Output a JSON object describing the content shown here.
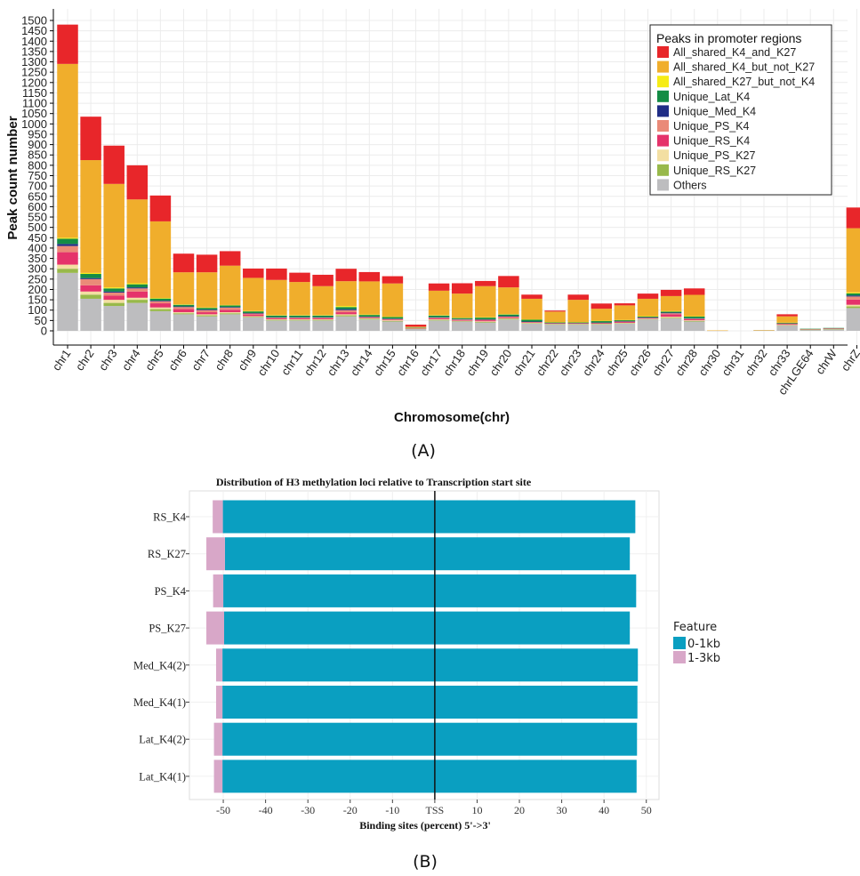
{
  "colors": {
    "All_shared_K4_and_K27": "#e8262a",
    "All_shared_K4_but_not_K27": "#f0ae2c",
    "All_shared_K27_but_not_K4": "#f6ec16",
    "Unique_Lat_K4": "#148c45",
    "Unique_Med_K4": "#1f2d86",
    "Unique_PS_K4": "#ea8a78",
    "Unique_RS_K4": "#e5336b",
    "Unique_PS_K27": "#f3dfa2",
    "Unique_RS_K27": "#98b94a",
    "Others": "#bdbdbf",
    "feature_0_1kb": "#0a9fc1",
    "feature_1_3kb": "#d8a7c8",
    "tss_line": "#111111"
  },
  "panel_labels": {
    "a": "(A)",
    "b": "(B)"
  },
  "chart_data": [
    {
      "type": "bar",
      "stacked": true,
      "panel": "A",
      "title": "",
      "xlabel": "Chromosome(chr)",
      "ylabel": "Peak count number",
      "ylim": [
        0,
        1500
      ],
      "yticks": [
        0,
        50,
        100,
        150,
        200,
        250,
        300,
        350,
        400,
        450,
        500,
        550,
        600,
        650,
        700,
        750,
        800,
        850,
        900,
        950,
        1000,
        1050,
        1100,
        1150,
        1200,
        1250,
        1300,
        1350,
        1400,
        1450,
        1500
      ],
      "ytick_labels": [
        "0",
        "50",
        "100",
        "150",
        "200",
        "250",
        "300",
        "350",
        "400",
        "450",
        "500",
        "550",
        "600",
        "650",
        "700",
        "750",
        "800",
        "850",
        "900",
        "950",
        "1000",
        "1050",
        "1100",
        "1150",
        "1200",
        "1250",
        "1300",
        "1350",
        "1400",
        "1450",
        "1500"
      ],
      "grid": true,
      "legend_title": "Peaks in promoter regions",
      "legend_position": "top-right",
      "categories": [
        "chr1",
        "chr2",
        "chr3",
        "chr4",
        "chr5",
        "chr6",
        "chr7",
        "chr8",
        "chr9",
        "chr10",
        "chr11",
        "chr12",
        "chr13",
        "chr14",
        "chr15",
        "chr16",
        "chr17",
        "chr18",
        "chr19",
        "chr20",
        "chr21",
        "chr22",
        "chr23",
        "chr24",
        "chr25",
        "chr26",
        "chr27",
        "chr28",
        "chr30",
        "chr31",
        "chr32",
        "chr33",
        "chrLGE64",
        "chrW",
        "chrZ"
      ],
      "series": [
        {
          "name": "Others",
          "values": [
            280,
            155,
            120,
            135,
            95,
            80,
            70,
            80,
            65,
            50,
            50,
            50,
            70,
            55,
            45,
            10,
            50,
            45,
            40,
            55,
            35,
            30,
            30,
            30,
            35,
            55,
            60,
            45,
            1,
            0,
            2,
            25,
            5,
            8,
            110
          ]
        },
        {
          "name": "Unique_RS_K27",
          "values": [
            20,
            20,
            15,
            15,
            10,
            5,
            5,
            5,
            3,
            3,
            3,
            3,
            5,
            3,
            3,
            1,
            3,
            2,
            3,
            3,
            2,
            2,
            2,
            2,
            2,
            2,
            3,
            3,
            0,
            0,
            0,
            2,
            1,
            1,
            8
          ]
        },
        {
          "name": "Unique_PS_K27",
          "values": [
            20,
            15,
            15,
            10,
            8,
            5,
            5,
            5,
            3,
            3,
            3,
            3,
            5,
            3,
            3,
            1,
            3,
            2,
            3,
            3,
            2,
            2,
            2,
            2,
            2,
            2,
            5,
            3,
            0,
            0,
            0,
            2,
            1,
            1,
            8
          ]
        },
        {
          "name": "Unique_RS_K4",
          "values": [
            60,
            30,
            20,
            30,
            20,
            15,
            10,
            12,
            8,
            5,
            5,
            5,
            10,
            3,
            3,
            1,
            5,
            3,
            5,
            5,
            3,
            2,
            2,
            3,
            5,
            3,
            12,
            5,
            0,
            0,
            0,
            3,
            1,
            1,
            25
          ]
        },
        {
          "name": "Unique_PS_K4",
          "values": [
            30,
            30,
            15,
            15,
            10,
            10,
            10,
            10,
            5,
            3,
            3,
            3,
            10,
            3,
            3,
            1,
            3,
            3,
            3,
            3,
            2,
            2,
            2,
            2,
            2,
            2,
            5,
            3,
            0,
            0,
            0,
            3,
            1,
            1,
            15
          ]
        },
        {
          "name": "Unique_Med_K4",
          "values": [
            10,
            5,
            5,
            5,
            3,
            3,
            3,
            3,
            2,
            2,
            2,
            2,
            5,
            2,
            2,
            0,
            2,
            2,
            2,
            2,
            1,
            1,
            1,
            1,
            1,
            1,
            3,
            2,
            0,
            0,
            0,
            1,
            0,
            0,
            5
          ]
        },
        {
          "name": "Unique_Lat_K4",
          "values": [
            25,
            20,
            15,
            15,
            10,
            8,
            8,
            8,
            8,
            8,
            8,
            8,
            10,
            8,
            8,
            2,
            8,
            5,
            8,
            8,
            10,
            3,
            3,
            8,
            5,
            5,
            5,
            8,
            0,
            0,
            0,
            3,
            1,
            2,
            10
          ]
        },
        {
          "name": "All_shared_K27_but_not_K4",
          "values": [
            5,
            5,
            5,
            5,
            3,
            2,
            2,
            2,
            2,
            2,
            2,
            2,
            5,
            2,
            2,
            0,
            2,
            2,
            2,
            2,
            1,
            1,
            1,
            1,
            1,
            1,
            2,
            2,
            0,
            0,
            0,
            1,
            0,
            0,
            5
          ]
        },
        {
          "name": "All_shared_K4_but_not_K27",
          "values": [
            840,
            545,
            500,
            405,
            370,
            155,
            170,
            190,
            160,
            170,
            160,
            140,
            120,
            160,
            160,
            4,
            118,
            116,
            150,
            129,
            99,
            50,
            107,
            58,
            70,
            84,
            73,
            103,
            1,
            0,
            2,
            30,
            0,
            0,
            310
          ]
        },
        {
          "name": "All_shared_K4_and_K27",
          "values": [
            190,
            210,
            185,
            165,
            125,
            90,
            85,
            70,
            45,
            55,
            45,
            55,
            60,
            45,
            35,
            10,
            35,
            50,
            25,
            55,
            20,
            5,
            25,
            25,
            10,
            25,
            30,
            31,
            0,
            0,
            0,
            10,
            0,
            0,
            100
          ]
        }
      ]
    },
    {
      "type": "bar",
      "orientation": "horizontal",
      "diverging": true,
      "panel": "B",
      "title": "Distribution of H3 methylation loci relative to Transcription start site",
      "xlabel": "Binding sites (percent) 5'->3'",
      "ylabel": "",
      "xlim": [
        -58,
        53
      ],
      "xticks": [
        -50,
        -40,
        -30,
        -20,
        -10,
        0,
        10,
        20,
        30,
        40,
        50
      ],
      "xtick_labels": [
        "-50",
        "-40",
        "-30",
        "-20",
        "-10",
        "TSS",
        "10",
        "20",
        "30",
        "40",
        "50"
      ],
      "grid": true,
      "legend_title": "Feature",
      "legend_position": "right",
      "categories": [
        "RS_K4",
        "RS_K27",
        "PS_K4",
        "PS_K27",
        "Med_K4(2)",
        "Med_K4(1)",
        "Lat_K4(2)",
        "Lat_K4(1)"
      ],
      "series": [
        {
          "name": "0-1kb",
          "left": [
            50.1,
            49.6,
            50.0,
            49.8,
            50.2,
            50.2,
            50.2,
            50.2
          ],
          "right": [
            47.4,
            46.1,
            47.6,
            46.1,
            48.0,
            47.9,
            47.8,
            47.7
          ]
        },
        {
          "name": "1-3kb",
          "left": [
            2.4,
            4.4,
            2.4,
            4.2,
            1.5,
            1.5,
            2.0,
            2.0
          ],
          "right": [
            0,
            0,
            0,
            0,
            0,
            0,
            0,
            0
          ]
        }
      ]
    }
  ]
}
